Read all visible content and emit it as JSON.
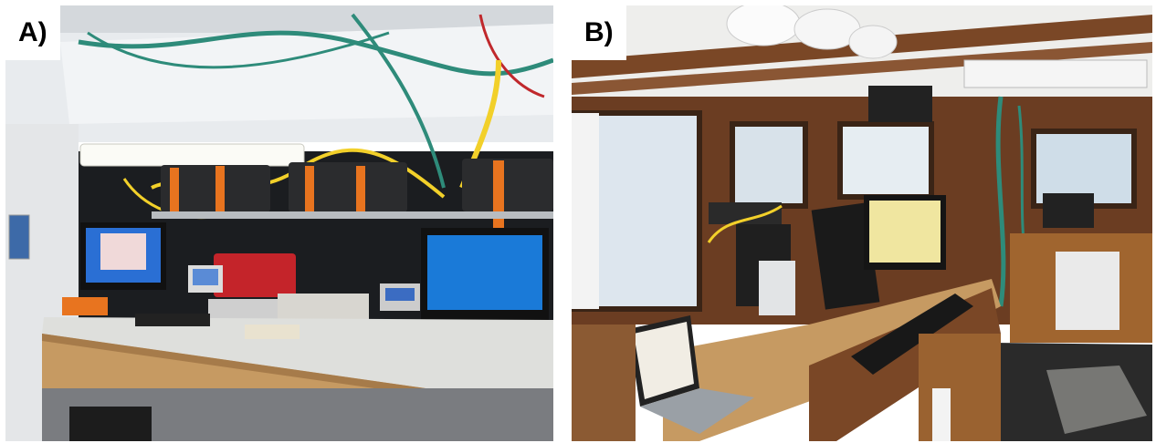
{
  "panels": [
    {
      "label": "A)",
      "scene": "ship-lab-bench"
    },
    {
      "label": "B)",
      "scene": "ship-bridge-console"
    }
  ],
  "colors": {
    "cable_yellow": "#f2d02a",
    "cable_teal": "#2e8b7a",
    "strap_orange": "#e8741f",
    "monitor_blue": "#1a7ad8",
    "wood": "#c69a62",
    "dark_wood": "#7a4726"
  },
  "icons": [
    "monitor-icon",
    "keyboard-icon",
    "laptop-icon",
    "cable-bundle-icon"
  ]
}
